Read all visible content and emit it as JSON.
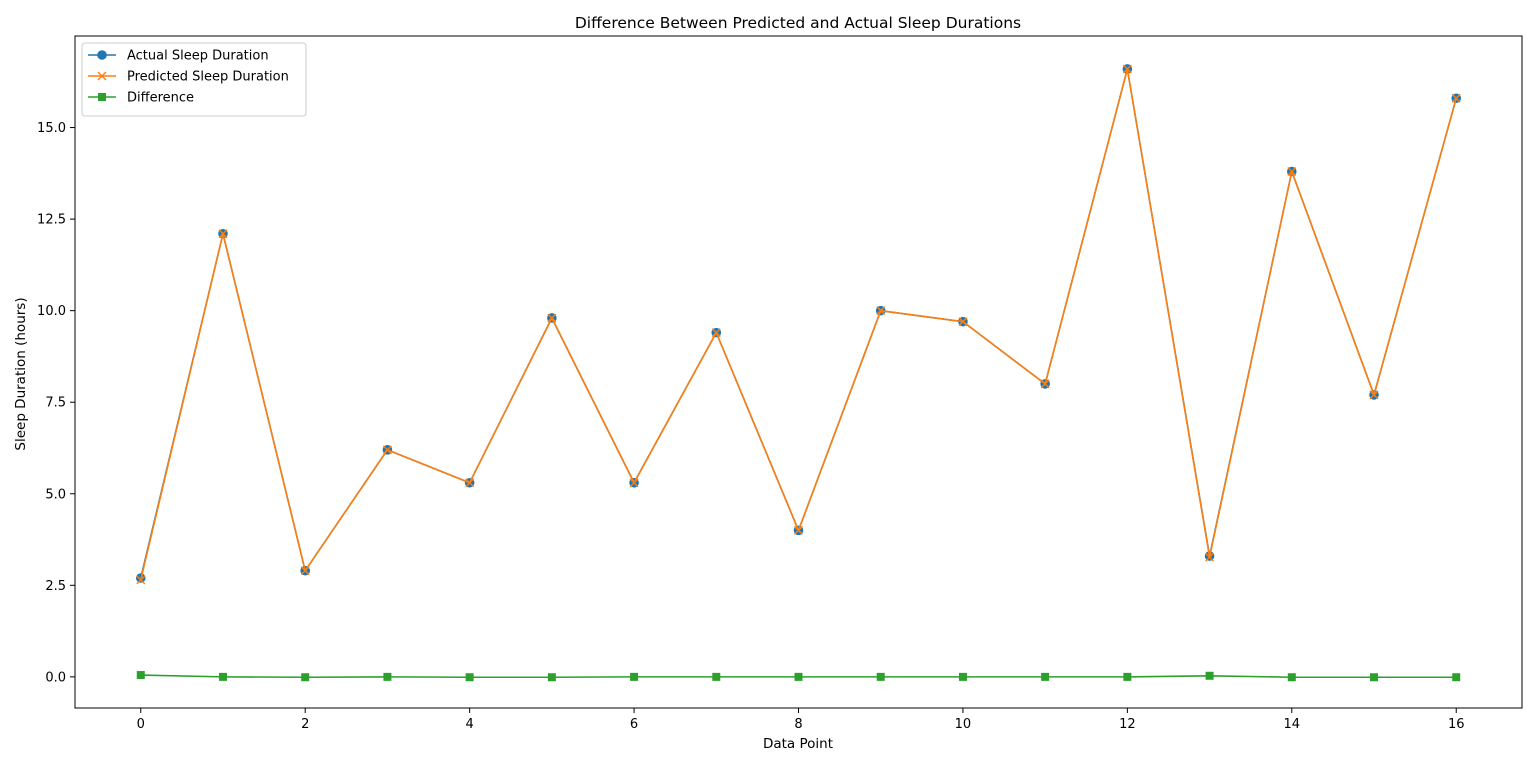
{
  "chart_data": {
    "type": "line",
    "title": "Difference Between Predicted and Actual Sleep Durations",
    "xlabel": "Data Point",
    "ylabel": "Sleep Duration (hours)",
    "xlim": [
      -0.8,
      16.8
    ],
    "ylim": [
      -0.85,
      17.5
    ],
    "xticks": [
      0,
      2,
      4,
      6,
      8,
      10,
      12,
      14,
      16
    ],
    "xtick_labels": [
      "0",
      "2",
      "4",
      "6",
      "8",
      "10",
      "12",
      "14",
      "16"
    ],
    "yticks": [
      0,
      2.5,
      5,
      7.5,
      10,
      12.5,
      15
    ],
    "ytick_labels": [
      "0.0",
      "2.5",
      "5.0",
      "7.5",
      "10.0",
      "12.5",
      "15.0"
    ],
    "grid": false,
    "legend_position": "top-left",
    "x": [
      0,
      1,
      2,
      3,
      4,
      5,
      6,
      7,
      8,
      9,
      10,
      11,
      12,
      13,
      14,
      15,
      16
    ],
    "series": [
      {
        "name": "Actual Sleep Duration",
        "color": "#1f77b4",
        "marker": "circle",
        "values": [
          2.7,
          12.1,
          2.9,
          6.2,
          5.3,
          9.8,
          5.3,
          9.4,
          4.0,
          10.0,
          9.7,
          8.0,
          16.6,
          3.3,
          13.8,
          7.7,
          15.8
        ]
      },
      {
        "name": "Predicted Sleep Duration",
        "color": "#ff7f0e",
        "marker": "x",
        "values": [
          2.65,
          12.1,
          2.9,
          6.2,
          5.3,
          9.8,
          5.3,
          9.4,
          4.0,
          10.0,
          9.7,
          8.0,
          16.6,
          3.27,
          13.8,
          7.7,
          15.8
        ]
      },
      {
        "name": "Difference",
        "color": "#2ca02c",
        "marker": "square",
        "values": [
          0.05,
          0.0,
          -0.01,
          0.0,
          -0.01,
          -0.01,
          0.0,
          0.0,
          0.0,
          0.0,
          0.0,
          0.0,
          0.0,
          0.03,
          -0.01,
          -0.01,
          -0.01
        ]
      }
    ]
  }
}
